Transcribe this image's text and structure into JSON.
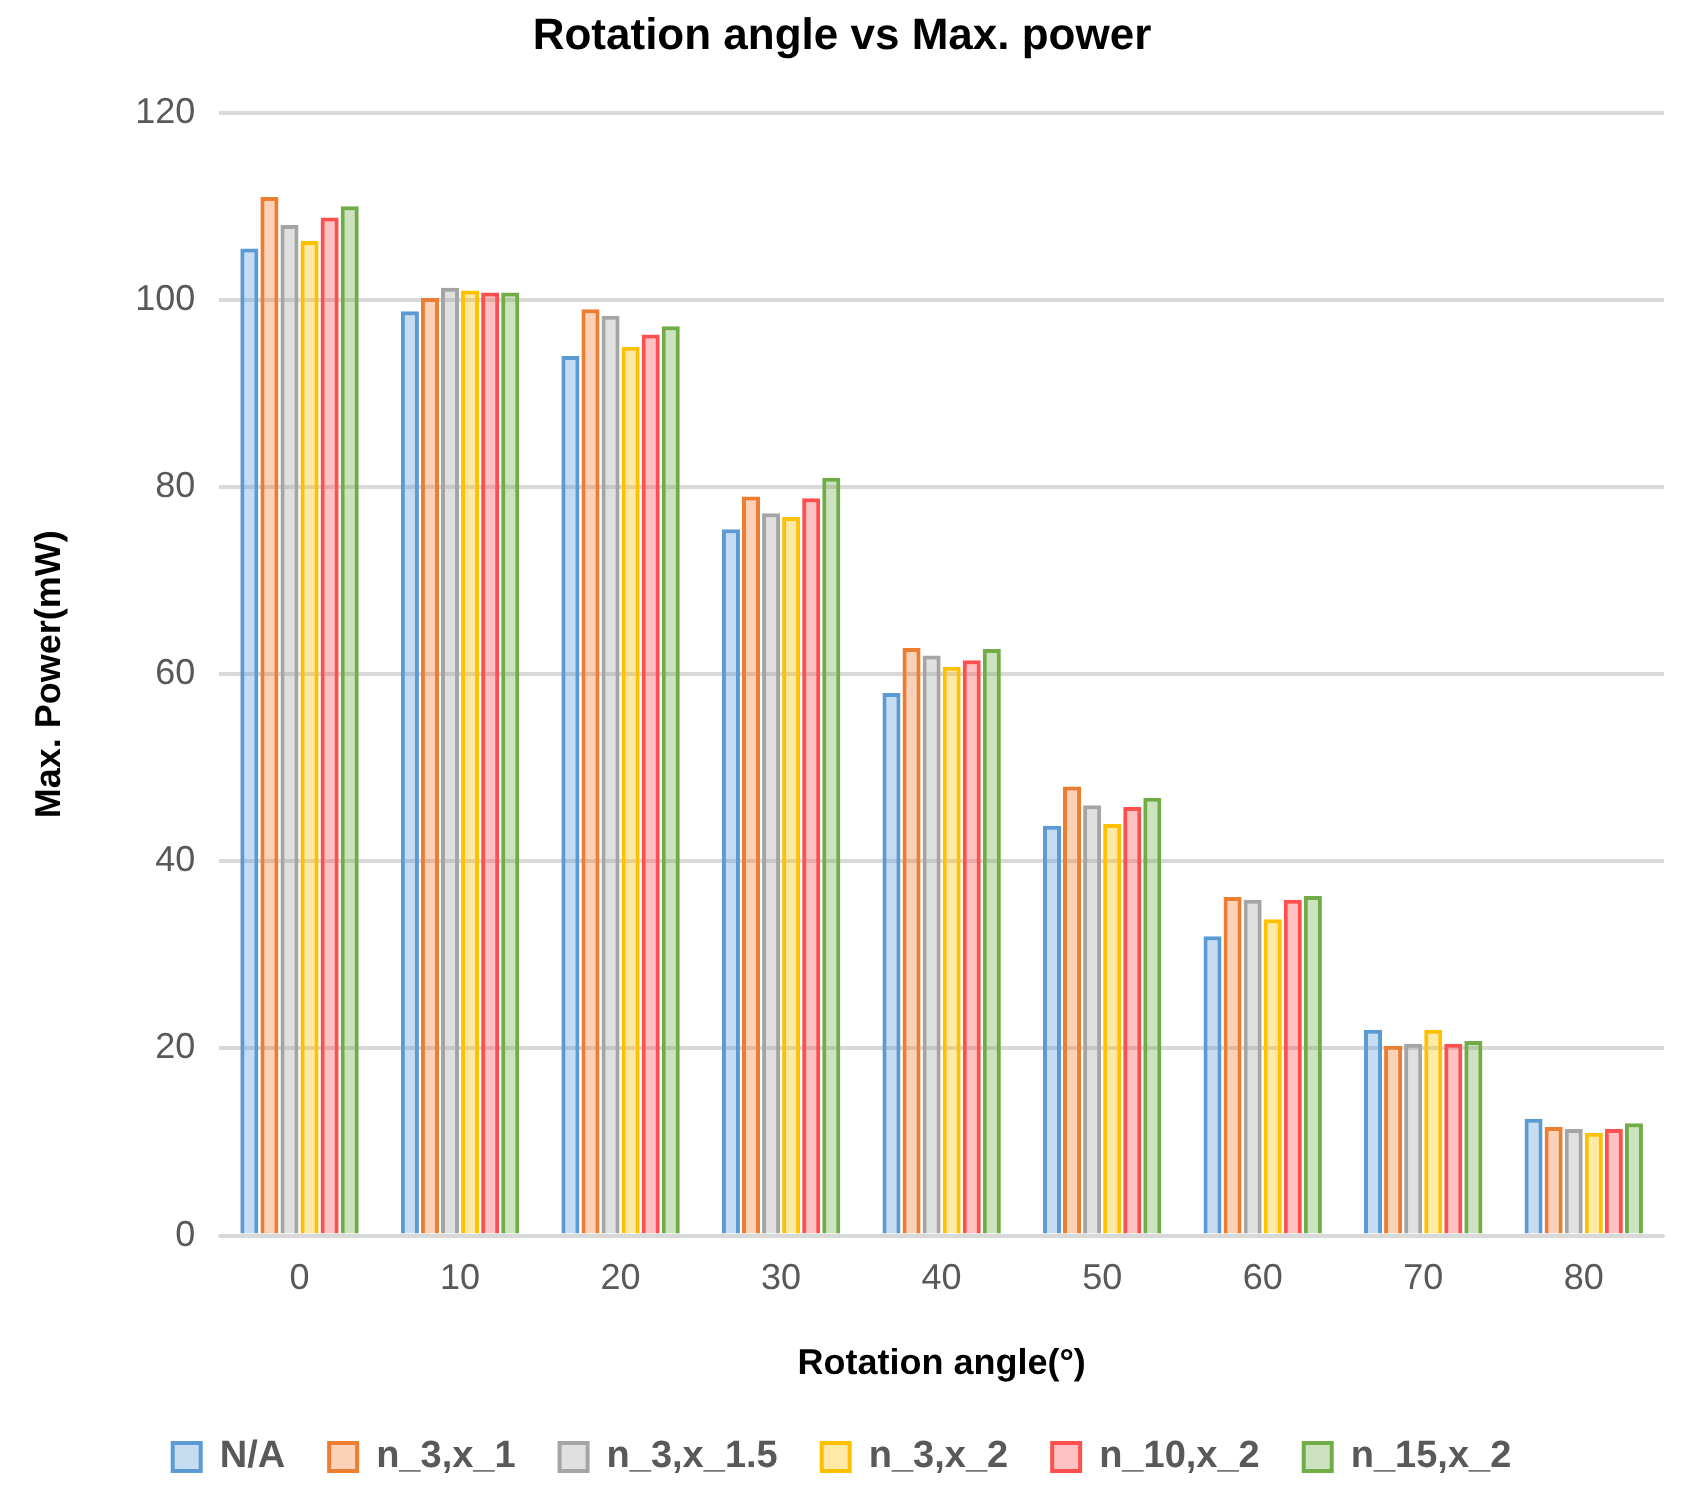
{
  "chart_data": {
    "type": "bar",
    "title": "Rotation angle vs Max. power",
    "xlabel": "Rotation angle(°)",
    "ylabel": "Max. Power(mW)",
    "categories": [
      "0",
      "10",
      "20",
      "30",
      "40",
      "50",
      "60",
      "70",
      "80"
    ],
    "series": [
      {
        "name": "N/A",
        "color": "#5b9bd5",
        "values": [
          105.5,
          98.8,
          94,
          75.5,
          58,
          43.8,
          32,
          22,
          12.5
        ]
      },
      {
        "name": "n_3,x_1",
        "color": "#ed7d31",
        "values": [
          111,
          100.2,
          99,
          79,
          62.8,
          48,
          36.2,
          20.3,
          11.6
        ]
      },
      {
        "name": "n_3,x_1.5",
        "color": "#a5a5a5",
        "values": [
          108,
          101.3,
          98.3,
          77.2,
          62,
          46,
          35.9,
          20.5,
          11.4
        ]
      },
      {
        "name": "n_3,x_2",
        "color": "#ffc000",
        "values": [
          106.3,
          101,
          95,
          76.8,
          60.8,
          44,
          33.8,
          22,
          11
        ]
      },
      {
        "name": "n_10,x_2",
        "color": "#ff5050",
        "values": [
          108.8,
          100.8,
          96.3,
          78.8,
          61.5,
          45.8,
          35.9,
          20.5,
          11.4
        ]
      },
      {
        "name": "n_15,x_2",
        "color": "#70ad47",
        "values": [
          110,
          100.8,
          97.2,
          81,
          62.7,
          46.8,
          36.3,
          20.8,
          12
        ]
      }
    ],
    "ylim": [
      0,
      120
    ],
    "yticks": [
      0,
      20,
      40,
      60,
      80,
      100,
      120
    ],
    "grid": "y",
    "legend": "bottom"
  }
}
